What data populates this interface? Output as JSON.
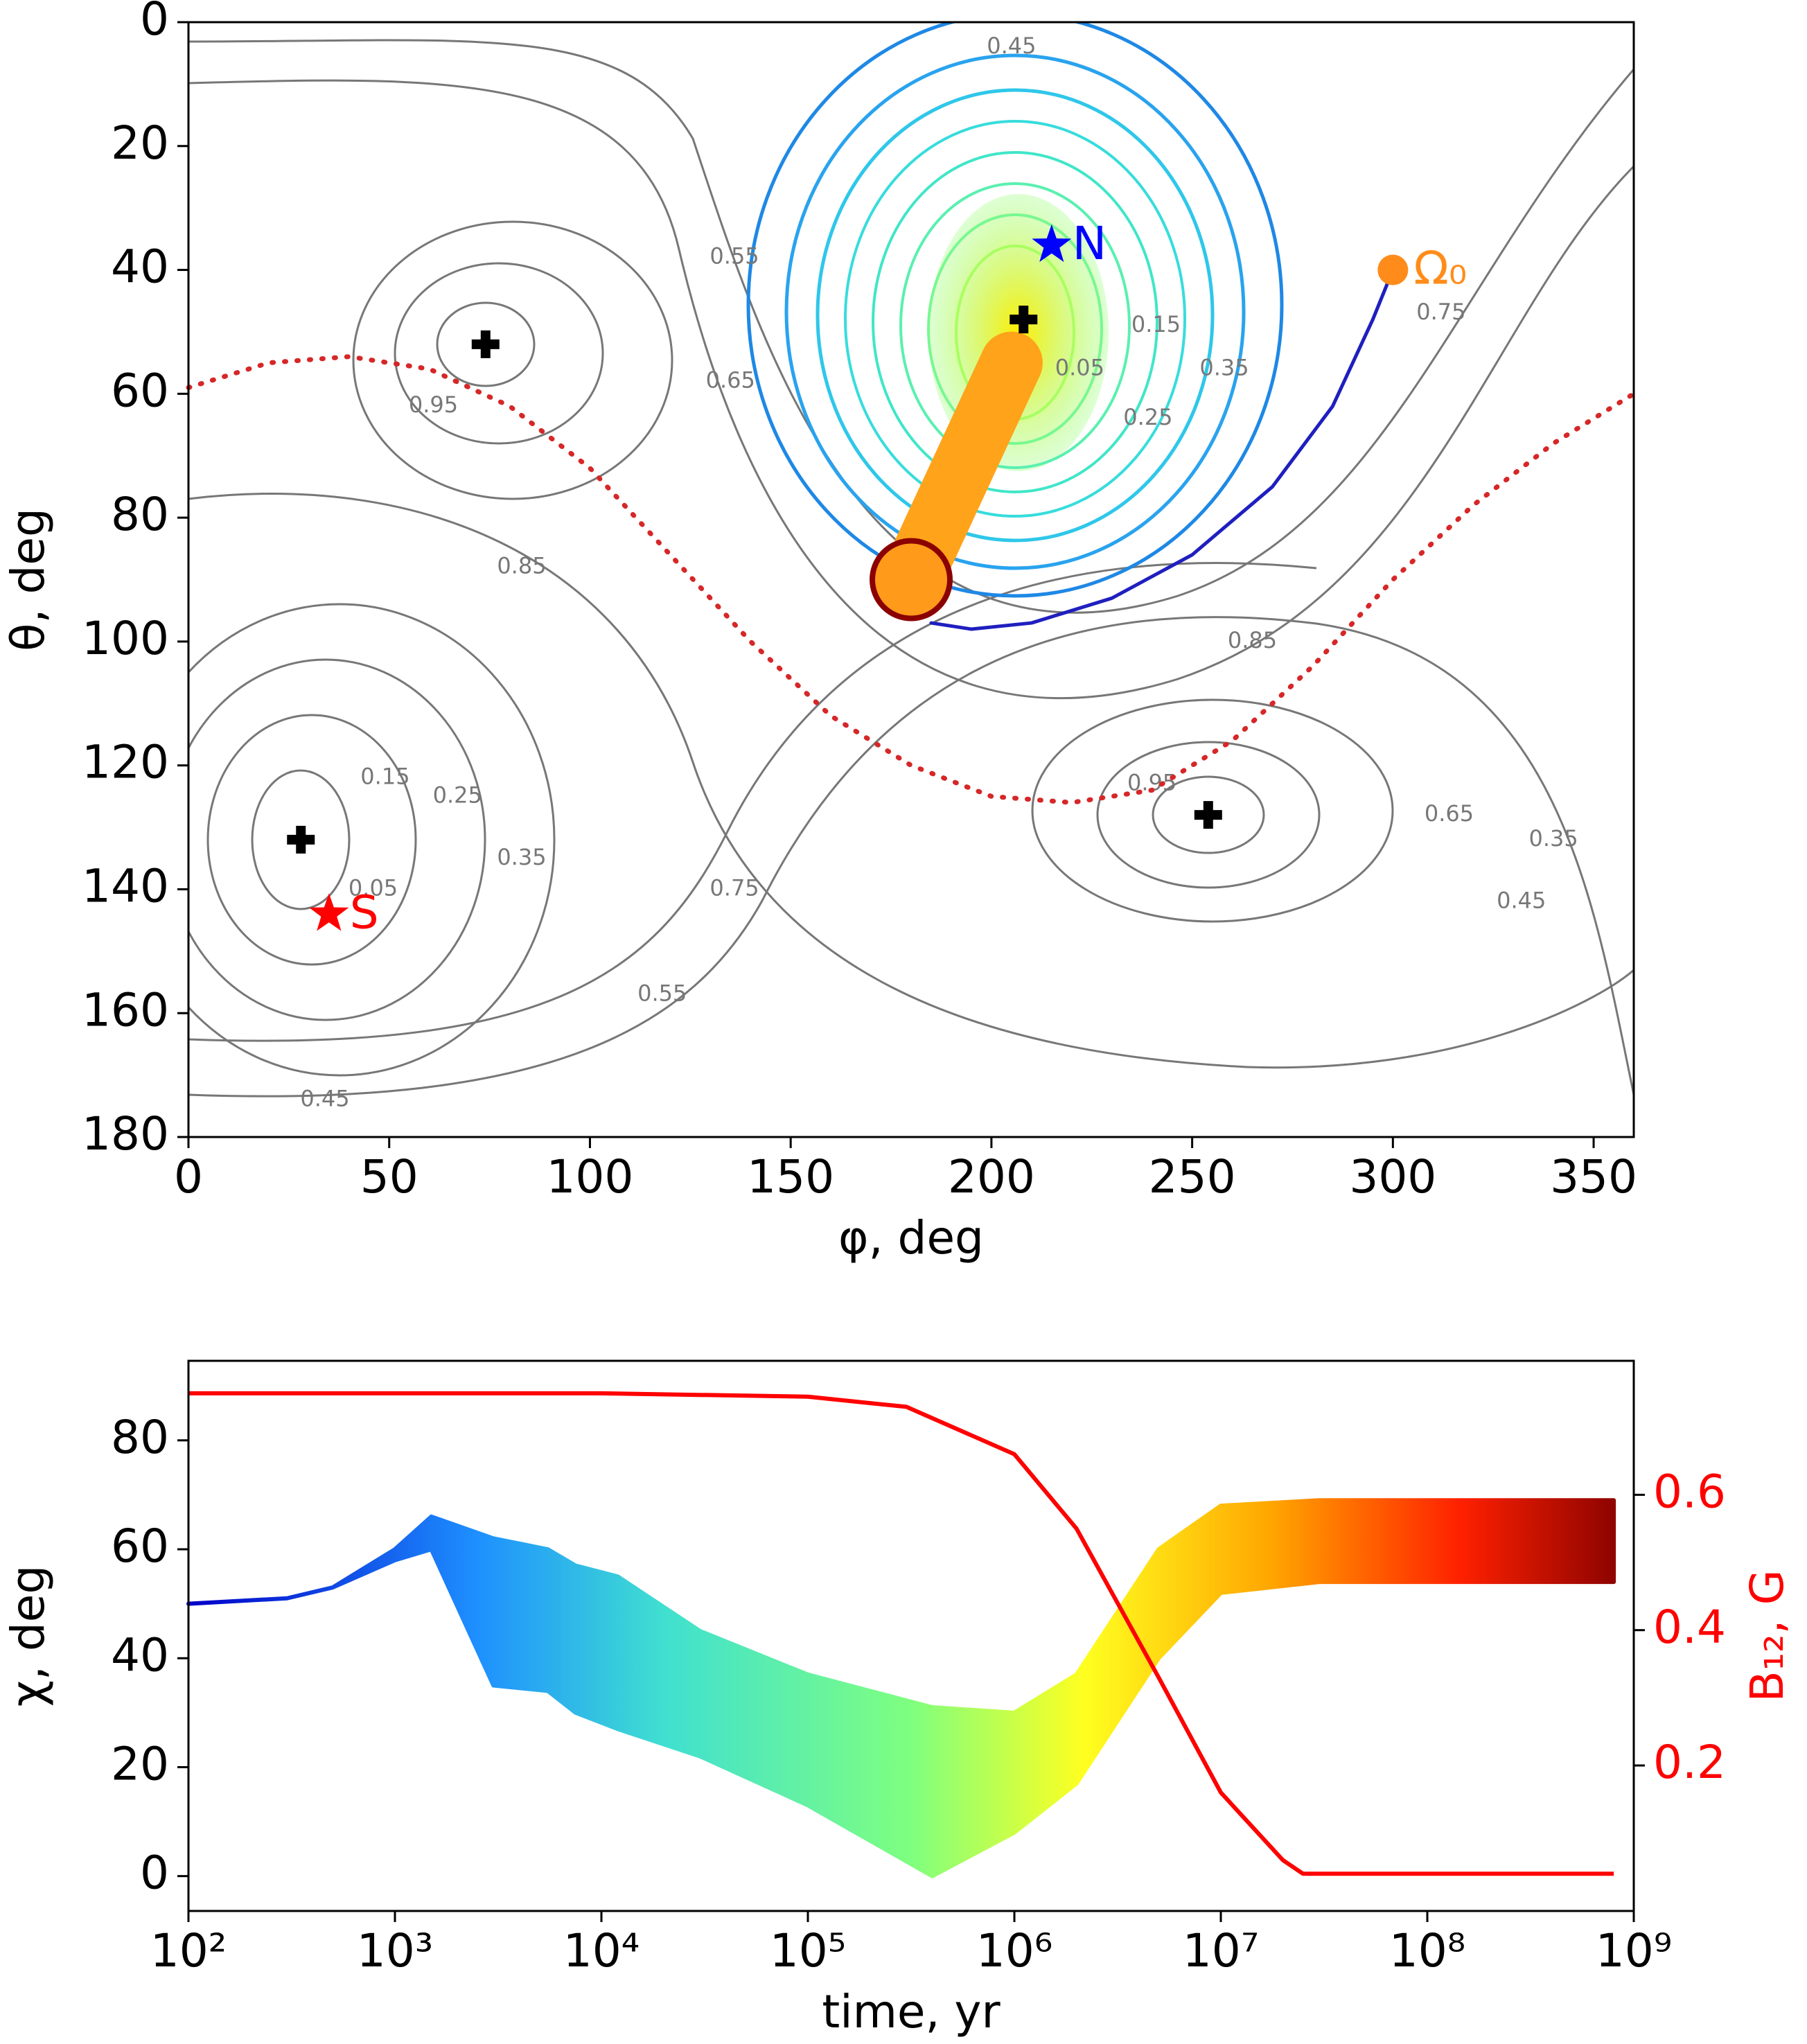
{
  "chart_data": [
    {
      "type": "contour",
      "xlabel": "φ, deg",
      "ylabel": "θ, deg",
      "xlim": [
        0,
        360
      ],
      "ylim": [
        180,
        0
      ],
      "xticks": [
        0,
        50,
        100,
        150,
        200,
        250,
        300,
        350
      ],
      "yticks": [
        0,
        20,
        40,
        60,
        80,
        100,
        120,
        140,
        160,
        180
      ],
      "markers": [
        {
          "label": "N",
          "x": 215,
          "y": 36,
          "color": "#0000ff",
          "symbol": "star"
        },
        {
          "label": "S",
          "x": 35,
          "y": 144,
          "color": "#ff0000",
          "symbol": "star"
        },
        {
          "label": "Ω₀",
          "x": 300,
          "y": 40,
          "color": "#ff8c1a",
          "symbol": "circle"
        }
      ],
      "saddles": {
        "x": [
          74,
          208,
          28,
          254
        ],
        "y": [
          52,
          48,
          132,
          128
        ],
        "color": "#000000"
      },
      "series": [
        {
          "color": "#d62728",
          "style": "dotted",
          "x": [
            0,
            20,
            40,
            60,
            80,
            100,
            120,
            140,
            160,
            180,
            200,
            220,
            240,
            260,
            280,
            300,
            320,
            340,
            360
          ],
          "values": [
            59,
            55,
            54,
            56,
            62,
            72,
            86,
            100,
            112,
            120,
            125,
            126,
            124,
            116,
            104,
            90,
            78,
            68,
            60
          ]
        },
        {
          "color": "#1f1fbf",
          "style": "solid",
          "x": [
            300,
            295,
            285,
            270,
            250,
            230,
            210,
            195,
            185
          ],
          "values": [
            40,
            48,
            62,
            75,
            86,
            93,
            97,
            98,
            97
          ]
        },
        {
          "color": "#ffa31a",
          "style": "thick",
          "x": [
            205,
            180
          ],
          "values": [
            55,
            90
          ]
        }
      ],
      "end_point": {
        "x": 180,
        "y": 90,
        "color": "#8b0000"
      },
      "contour_labels": [
        {
          "text": "0.45",
          "x": 205,
          "y": 4
        },
        {
          "text": "0.55",
          "x": 136,
          "y": 38
        },
        {
          "text": "0.65",
          "x": 135,
          "y": 58
        },
        {
          "text": "0.75",
          "x": 312,
          "y": 47
        },
        {
          "text": "0.85",
          "x": 83,
          "y": 88
        },
        {
          "text": "0.95",
          "x": 61,
          "y": 62
        },
        {
          "text": "0.15",
          "x": 49,
          "y": 122
        },
        {
          "text": "0.05",
          "x": 46,
          "y": 140
        },
        {
          "text": "0.25",
          "x": 67,
          "y": 125
        },
        {
          "text": "0.35",
          "x": 83,
          "y": 135
        },
        {
          "text": "0.75",
          "x": 136,
          "y": 140
        },
        {
          "text": "0.55",
          "x": 118,
          "y": 157
        },
        {
          "text": "0.45",
          "x": 34,
          "y": 174
        },
        {
          "text": "0.85",
          "x": 265,
          "y": 100
        },
        {
          "text": "0.95",
          "x": 240,
          "y": 123
        },
        {
          "text": "0.65",
          "x": 314,
          "y": 128
        },
        {
          "text": "0.35",
          "x": 340,
          "y": 132
        },
        {
          "text": "0.45",
          "x": 332,
          "y": 142
        },
        {
          "text": "0.05",
          "x": 222,
          "y": 56
        },
        {
          "text": "0.15",
          "x": 241,
          "y": 49
        },
        {
          "text": "0.25",
          "x": 239,
          "y": 64
        },
        {
          "text": "0.35",
          "x": 258,
          "y": 56
        }
      ]
    },
    {
      "type": "line",
      "xscale": "log",
      "xlabel": "time, yr",
      "ylabel": "χ, deg",
      "y2label": "B₁₂, G",
      "xlim": [
        100,
        1000000000
      ],
      "xticks": [
        {
          "value": 100,
          "label": "10²"
        },
        {
          "value": 1000,
          "label": "10³"
        },
        {
          "value": 10000,
          "label": "10⁴"
        },
        {
          "value": 100000,
          "label": "10⁵"
        },
        {
          "value": 1000000,
          "label": "10⁶"
        },
        {
          "value": 10000000,
          "label": "10⁷"
        },
        {
          "value": 100000000,
          "label": "10⁸"
        },
        {
          "value": 1000000000,
          "label": "10⁹"
        }
      ],
      "ylim": [
        -6.4,
        94.6
      ],
      "yticks": [
        0,
        20,
        40,
        60,
        80
      ],
      "y2lim": [
        -0.015,
        0.798
      ],
      "y2ticks": [
        0.2,
        0.4,
        0.6
      ],
      "y2color": "#ff0000",
      "band": {
        "colormap": "jet",
        "x": [
          100,
          300,
          500,
          1000,
          1500,
          3000,
          5500,
          7500,
          12000,
          30000,
          100000,
          400000,
          1000000,
          2000000,
          5000000,
          10000000,
          30000000,
          100000000,
          800000000
        ],
        "upper": [
          50,
          51,
          53,
          60,
          66,
          62,
          60,
          57,
          55,
          45,
          37,
          31,
          30,
          37,
          60,
          68,
          69,
          69,
          69
        ],
        "lower": [
          50,
          51,
          53,
          58,
          60,
          35,
          34,
          30,
          27,
          22,
          13,
          0,
          8,
          17,
          40,
          52,
          54,
          54,
          54
        ]
      },
      "series": [
        {
          "axis": "y2",
          "color": "#ff0000",
          "x": [
            100,
            10000,
            100000,
            300000,
            1000000,
            2000000,
            5000000,
            10000000,
            20000000,
            25000000,
            800000000
          ],
          "values": [
            0.75,
            0.75,
            0.745,
            0.73,
            0.66,
            0.55,
            0.33,
            0.16,
            0.06,
            0.04,
            0.04
          ]
        }
      ]
    }
  ]
}
